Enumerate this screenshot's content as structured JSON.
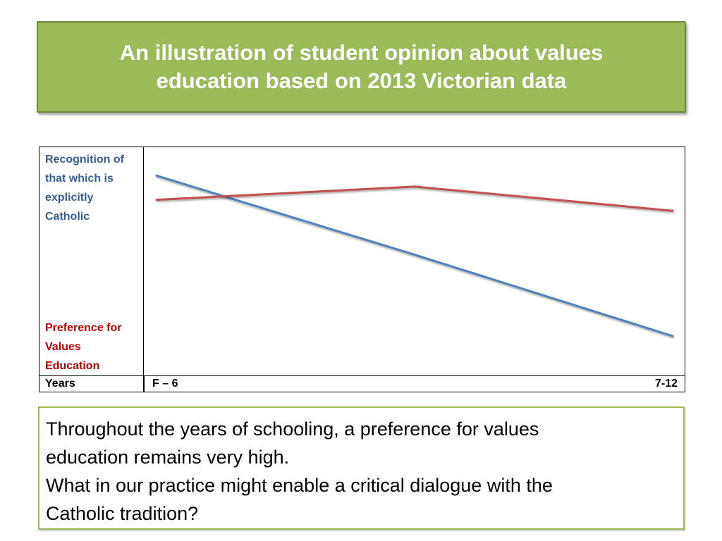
{
  "slide": {
    "title_line1": "An illustration of student opinion about values",
    "title_line2": "education based on 2013 Victorian data",
    "title_bg_color": "#9bbb59"
  },
  "chart_data": {
    "type": "line",
    "title": "",
    "ylabel_top": "Recognition of that which is explicitly Catholic",
    "ylabel_bottom": "Preference for Values Education",
    "xlabel": "Years",
    "x_tick_labels": [
      "F – 6",
      "7-12"
    ],
    "ylim": [
      0,
      1
    ],
    "grid": false,
    "series": [
      {
        "label_ref": "recognition",
        "color": "#4f81bd",
        "points": [
          [
            0.0,
            0.89
          ],
          [
            0.5,
            0.53
          ],
          [
            1.0,
            0.16
          ]
        ]
      },
      {
        "label_ref": "preference",
        "color": "#c0504d",
        "points": [
          [
            0.0,
            0.78
          ],
          [
            0.5,
            0.84
          ],
          [
            1.0,
            0.73
          ]
        ]
      }
    ]
  },
  "note": {
    "lines": [
      "Throughout the years of schooling, a preference for values",
      "education remains very high.",
      "What in our practice might enable a critical dialogue with the",
      "Catholic tradition?"
    ]
  }
}
